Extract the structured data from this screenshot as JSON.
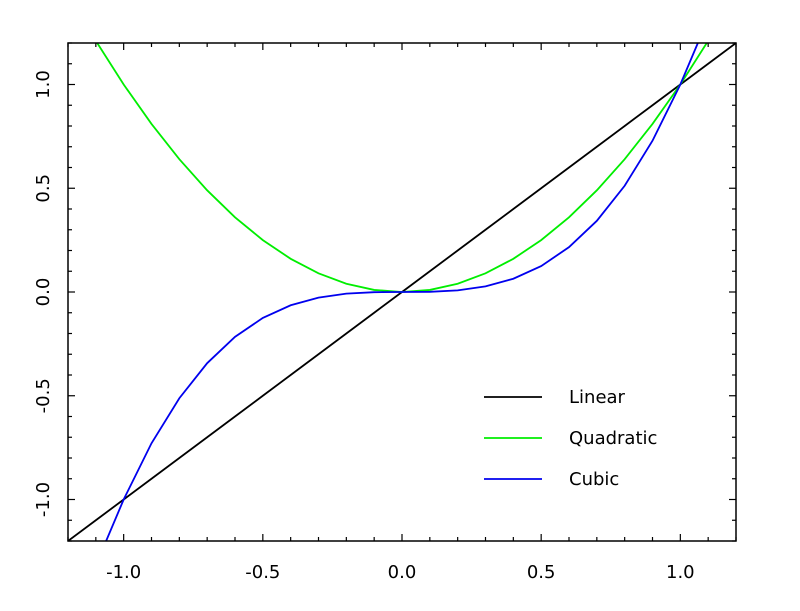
{
  "chart_data": {
    "type": "line",
    "title": "",
    "xlabel": "",
    "ylabel": "",
    "xlim": [
      -1.2,
      1.2
    ],
    "ylim": [
      -1.2,
      1.2
    ],
    "grid": false,
    "legend_position": "bottom-right",
    "x_ticks": [
      "-1.0",
      "-0.5",
      "0.0",
      "0.5",
      "1.0"
    ],
    "y_ticks": [
      "-1.0",
      "-0.5",
      "0.0",
      "0.5",
      "1.0"
    ],
    "series": [
      {
        "name": "Linear",
        "color": "#000000",
        "x": [
          -1.2,
          -1.1,
          -1.0,
          -0.9,
          -0.8,
          -0.7,
          -0.6,
          -0.5,
          -0.4,
          -0.3,
          -0.2,
          -0.1,
          0.0,
          0.1,
          0.2,
          0.3,
          0.4,
          0.5,
          0.6,
          0.7,
          0.8,
          0.9,
          1.0,
          1.1,
          1.2
        ],
        "y": [
          -1.2,
          -1.1,
          -1.0,
          -0.9,
          -0.8,
          -0.7,
          -0.6,
          -0.5,
          -0.4,
          -0.3,
          -0.2,
          -0.1,
          0.0,
          0.1,
          0.2,
          0.3,
          0.4,
          0.5,
          0.6,
          0.7,
          0.8,
          0.9,
          1.0,
          1.1,
          1.2
        ]
      },
      {
        "name": "Quadratic",
        "color": "#00ee00",
        "x": [
          -1.095,
          -1.0,
          -0.9,
          -0.8,
          -0.7,
          -0.6,
          -0.5,
          -0.4,
          -0.3,
          -0.2,
          -0.1,
          0.0,
          0.1,
          0.2,
          0.3,
          0.4,
          0.5,
          0.6,
          0.7,
          0.8,
          0.9,
          1.0,
          1.095
        ],
        "y": [
          1.2,
          1.0,
          0.81,
          0.64,
          0.49,
          0.36,
          0.25,
          0.16,
          0.09,
          0.04,
          0.01,
          0.0,
          0.01,
          0.04,
          0.09,
          0.16,
          0.25,
          0.36,
          0.49,
          0.64,
          0.81,
          1.0,
          1.2
        ]
      },
      {
        "name": "Cubic",
        "color": "#0000ee",
        "x": [
          -1.063,
          -1.0,
          -0.9,
          -0.8,
          -0.7,
          -0.6,
          -0.5,
          -0.4,
          -0.3,
          -0.2,
          -0.1,
          0.0,
          0.1,
          0.2,
          0.3,
          0.4,
          0.5,
          0.6,
          0.7,
          0.8,
          0.9,
          1.0,
          1.063
        ],
        "y": [
          -1.2,
          -1.0,
          -0.729,
          -0.512,
          -0.343,
          -0.216,
          -0.125,
          -0.064,
          -0.027,
          -0.008,
          -0.001,
          0.0,
          0.001,
          0.008,
          0.027,
          0.064,
          0.125,
          0.216,
          0.343,
          0.512,
          0.729,
          1.0,
          1.2
        ]
      }
    ]
  }
}
